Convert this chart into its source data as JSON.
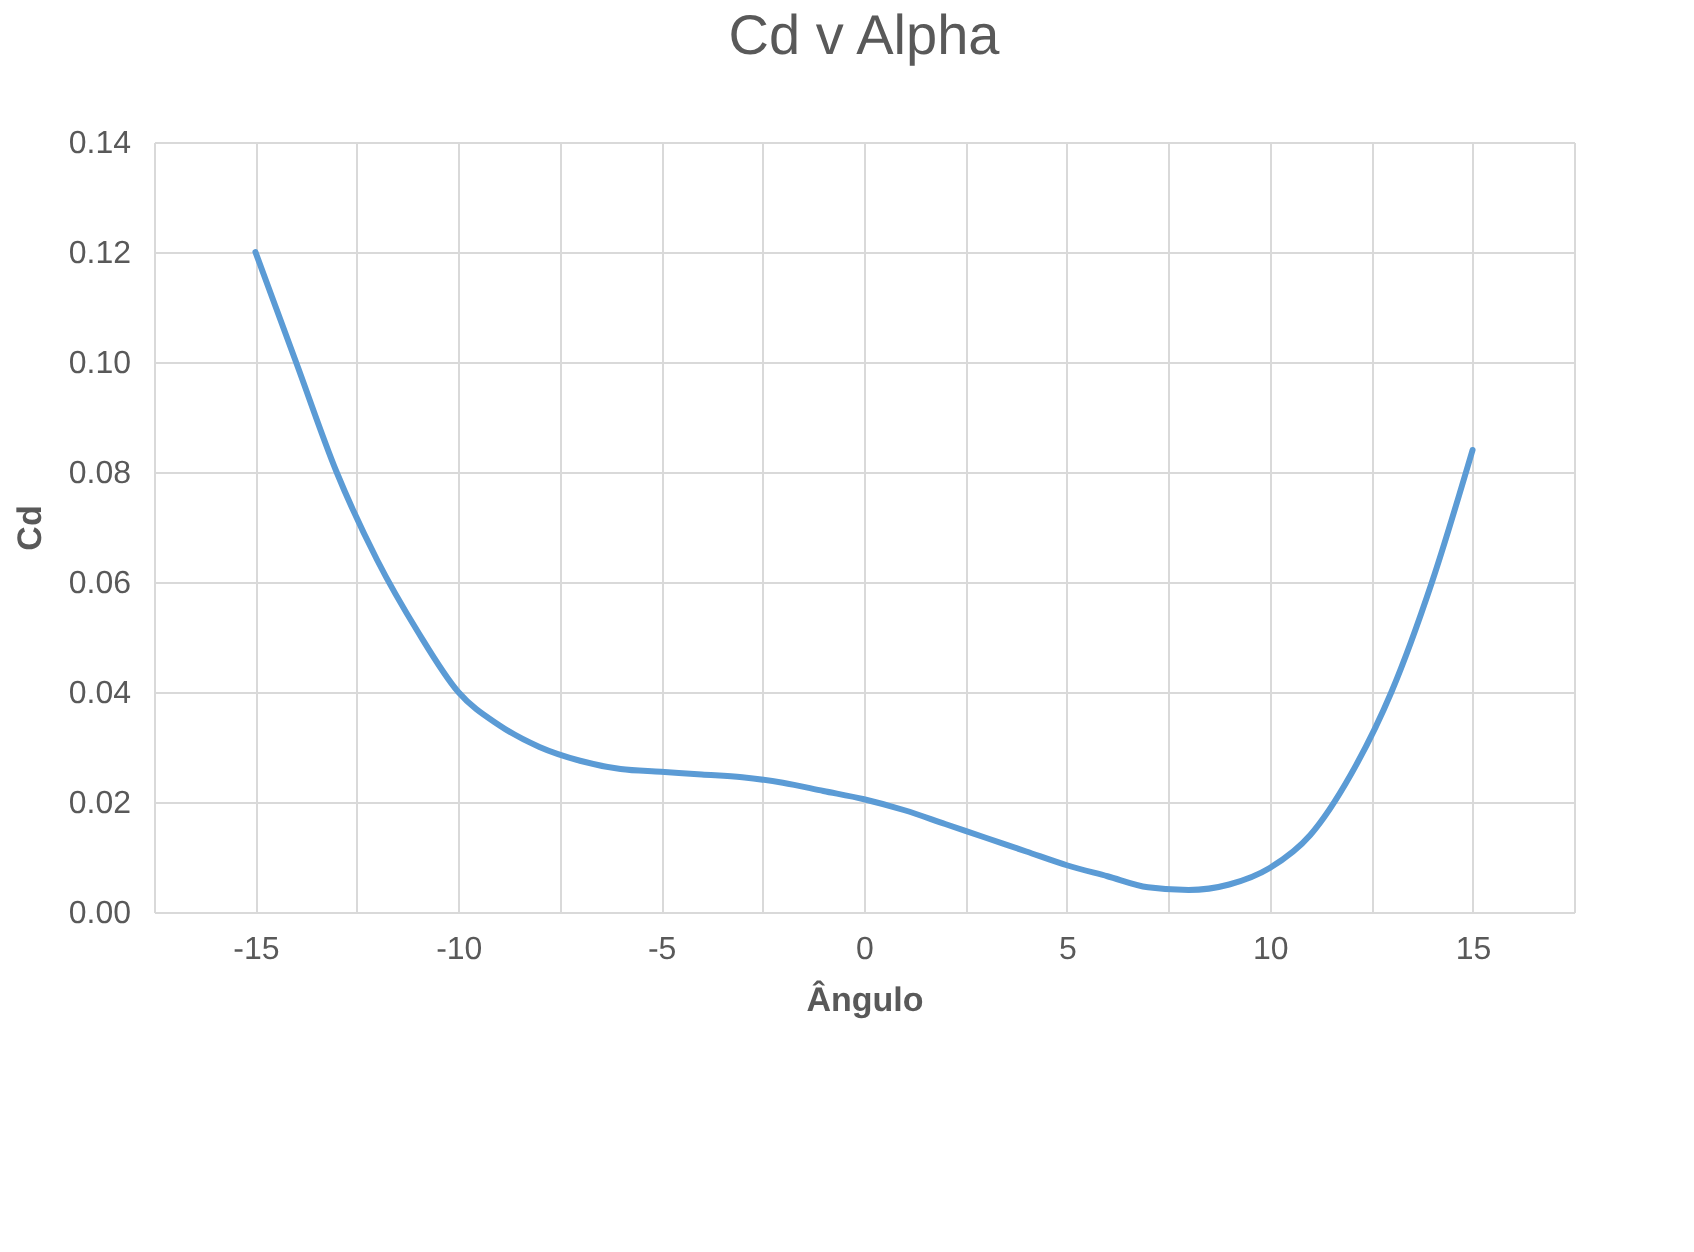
{
  "chart_data": {
    "type": "line",
    "title": "Cd v Alpha",
    "xlabel": "Ângulo",
    "ylabel": "Cd",
    "x": [
      -15,
      -14,
      -13,
      -12,
      -11,
      -10,
      -9,
      -8,
      -7,
      -6,
      -5,
      -4,
      -3,
      -2,
      -1,
      0,
      1,
      2,
      3,
      4,
      5,
      6,
      7,
      8,
      9,
      10,
      11,
      12,
      13,
      14,
      15
    ],
    "series": [
      {
        "color": "#5b9bd5",
        "values": [
          0.12,
          0.1,
          0.08,
          0.064,
          0.051,
          0.04,
          0.034,
          0.03,
          0.0275,
          0.026,
          0.0255,
          0.025,
          0.0245,
          0.0235,
          0.022,
          0.0205,
          0.0185,
          0.016,
          0.0135,
          0.011,
          0.0085,
          0.0065,
          0.0045,
          0.004,
          0.005,
          0.008,
          0.014,
          0.025,
          0.04,
          0.06,
          0.084
        ]
      }
    ],
    "xlim": [
      -17.5,
      17.5
    ],
    "xticks": [
      {
        "value": -17.5,
        "label": null
      },
      -15,
      {
        "value": -12.5,
        "label": null
      },
      -10,
      {
        "value": -7.5,
        "label": null
      },
      -5,
      {
        "value": -2.5,
        "label": null
      },
      0,
      {
        "value": 2.5,
        "label": null
      },
      5,
      {
        "value": 7.5,
        "label": null
      },
      10,
      {
        "value": 12.5,
        "label": null
      },
      15,
      {
        "value": 17.5,
        "label": null
      }
    ],
    "ylim": [
      0,
      0.14
    ],
    "yticks": [
      {
        "value": 0,
        "label": "0.00"
      },
      {
        "value": 0.02,
        "label": "0.02"
      },
      {
        "value": 0.04,
        "label": "0.04"
      },
      {
        "value": 0.06,
        "label": "0.06"
      },
      {
        "value": 0.08,
        "label": "0.08"
      },
      {
        "value": 0.1,
        "label": "0.10"
      },
      {
        "value": 0.12,
        "label": "0.12"
      },
      {
        "value": 0.14,
        "label": "0.14"
      }
    ],
    "grid": true,
    "legend": false,
    "marker": "none",
    "line_style": "solid"
  }
}
